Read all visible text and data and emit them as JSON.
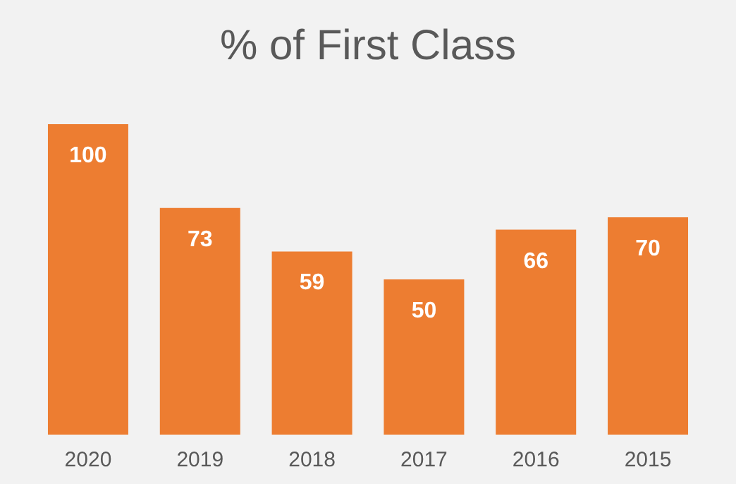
{
  "chart_data": {
    "type": "bar",
    "title": "% of First Class",
    "categories": [
      "2020",
      "2019",
      "2018",
      "2017",
      "2016",
      "2015"
    ],
    "values": [
      100,
      73,
      59,
      50,
      66,
      70
    ],
    "color": "#ed7d31",
    "data_labels": true
  }
}
